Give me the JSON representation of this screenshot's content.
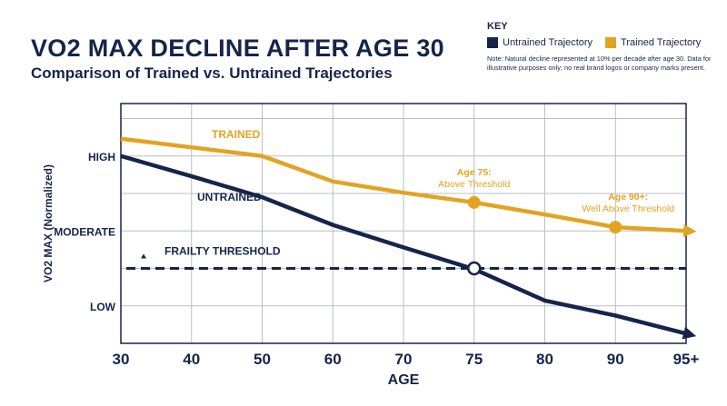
{
  "title": "VO2 MAX DECLINE AFTER AGE 30",
  "subtitle": "Comparison of Trained vs. Untrained Trajectories",
  "key": {
    "heading": "KEY",
    "untrained_label": "Untrained Trajectory",
    "trained_label": "Trained Trajectory",
    "note": "Note: Natural decline represented at 10% per decade after age 30. Data for illustrative purposes only; no real brand logos or company marks present."
  },
  "colors": {
    "untrained": "#15254a",
    "trained": "#e3a322",
    "grid": "#b9bdc4"
  },
  "chart_data": {
    "type": "line",
    "xlabel": "AGE",
    "ylabel": "VO2 MAX (Normalized)",
    "x_ticks": [
      "30",
      "40",
      "50",
      "60",
      "70",
      "75",
      "80",
      "90",
      "95+"
    ],
    "y_ticks": [
      {
        "label": "HIGH",
        "value": 2
      },
      {
        "label": "MODERATE",
        "value": 1
      },
      {
        "label": "LOW",
        "value": 0
      }
    ],
    "ylim": [
      -0.5,
      2.7
    ],
    "grid": true,
    "series": [
      {
        "name": "TRAINED",
        "color": "#e3a322",
        "points": [
          [
            0,
            2.23
          ],
          [
            2,
            2.0
          ],
          [
            3,
            1.66
          ],
          [
            4,
            1.51
          ],
          [
            5,
            1.38
          ],
          [
            6,
            1.22
          ],
          [
            7,
            1.05
          ],
          [
            8,
            1.0
          ]
        ]
      },
      {
        "name": "UNTRAINED",
        "color": "#15254a",
        "points": [
          [
            0,
            2.0
          ],
          [
            1,
            1.73
          ],
          [
            2,
            1.45
          ],
          [
            3,
            1.08
          ],
          [
            4,
            0.78
          ],
          [
            5,
            0.49
          ],
          [
            6,
            0.07
          ],
          [
            7,
            -0.13
          ],
          [
            8,
            -0.37
          ]
        ]
      }
    ],
    "threshold": {
      "label": "FRAILTY THRESHOLD",
      "value": 0.5
    },
    "annotations": [
      {
        "series": "TRAINED",
        "x_index": 5,
        "y": 1.38,
        "text": [
          "Age 75:",
          "Above Threshold"
        ]
      },
      {
        "series": "TRAINED",
        "x_index": 7,
        "y": 1.05,
        "text": [
          "Age 90+:",
          "Well Above Threshold"
        ]
      }
    ],
    "crossing": {
      "x_index": 5,
      "y": 0.5
    }
  }
}
